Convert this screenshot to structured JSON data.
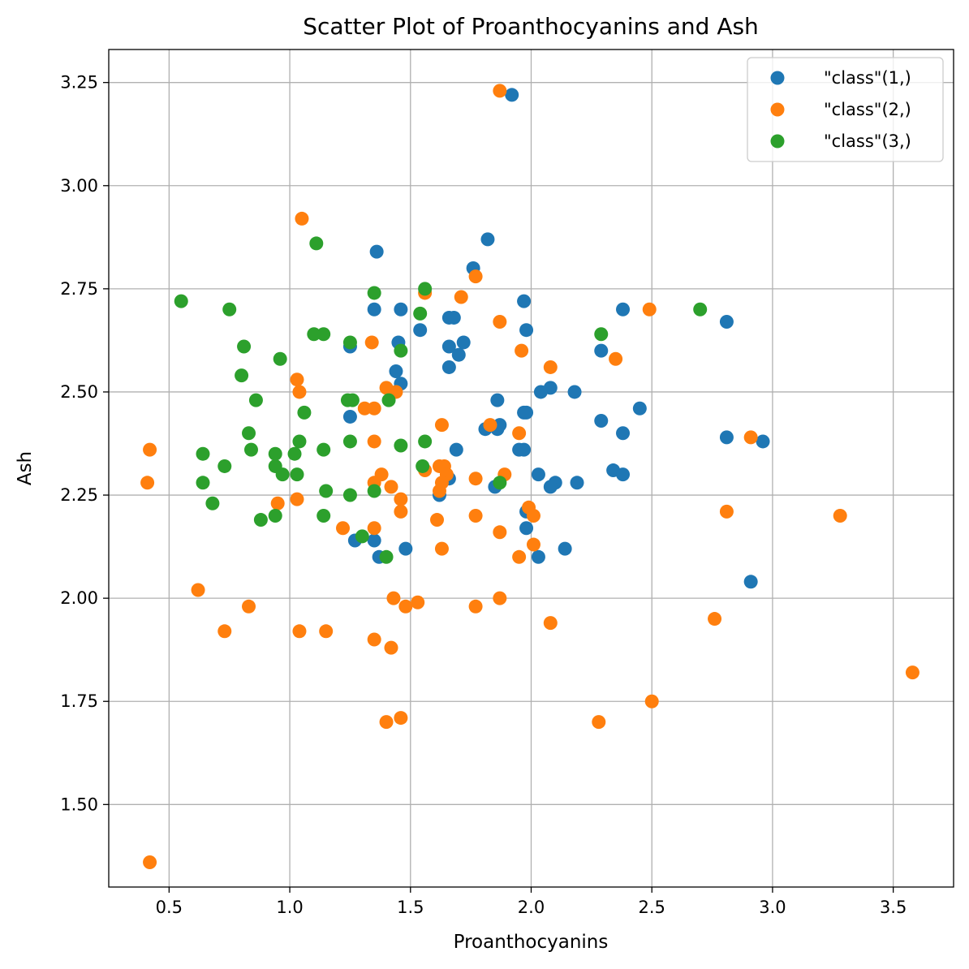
{
  "chart_data": {
    "type": "scatter",
    "title": "Scatter Plot of Proanthocyanins and Ash",
    "xlabel": "Proanthocyanins",
    "ylabel": "Ash",
    "xlim": [
      0.25,
      3.75
    ],
    "ylim": [
      1.3,
      3.33
    ],
    "xticks": [
      0.5,
      1.0,
      1.5,
      2.0,
      2.5,
      3.0,
      3.5
    ],
    "xtick_labels": [
      "0.5",
      "1.0",
      "1.5",
      "2.0",
      "2.5",
      "3.0",
      "3.5"
    ],
    "yticks": [
      1.5,
      1.75,
      2.0,
      2.25,
      2.5,
      2.75,
      3.0,
      3.25
    ],
    "ytick_labels": [
      "1.50",
      "1.75",
      "2.00",
      "2.25",
      "2.50",
      "2.75",
      "3.00",
      "3.25"
    ],
    "grid": true,
    "legend_position": "top-right",
    "series": [
      {
        "name": "\"class\"(1,)",
        "color": "#1f77b4",
        "points": [
          [
            1.92,
            3.22
          ],
          [
            1.82,
            2.87
          ],
          [
            1.36,
            2.84
          ],
          [
            1.76,
            2.8
          ],
          [
            1.97,
            2.72
          ],
          [
            1.35,
            2.7
          ],
          [
            1.46,
            2.7
          ],
          [
            2.38,
            2.7
          ],
          [
            1.66,
            2.68
          ],
          [
            1.68,
            2.68
          ],
          [
            2.81,
            2.67
          ],
          [
            1.54,
            2.65
          ],
          [
            1.98,
            2.65
          ],
          [
            1.45,
            2.62
          ],
          [
            1.72,
            2.62
          ],
          [
            1.25,
            2.61
          ],
          [
            1.66,
            2.61
          ],
          [
            2.29,
            2.6
          ],
          [
            1.7,
            2.59
          ],
          [
            1.66,
            2.56
          ],
          [
            1.44,
            2.55
          ],
          [
            1.46,
            2.52
          ],
          [
            2.08,
            2.51
          ],
          [
            2.04,
            2.5
          ],
          [
            2.18,
            2.5
          ],
          [
            1.86,
            2.48
          ],
          [
            2.45,
            2.46
          ],
          [
            1.98,
            2.45
          ],
          [
            1.97,
            2.45
          ],
          [
            1.25,
            2.44
          ],
          [
            2.29,
            2.43
          ],
          [
            1.87,
            2.42
          ],
          [
            1.81,
            2.41
          ],
          [
            1.86,
            2.41
          ],
          [
            2.38,
            2.4
          ],
          [
            2.81,
            2.39
          ],
          [
            2.96,
            2.38
          ],
          [
            1.69,
            2.36
          ],
          [
            1.95,
            2.36
          ],
          [
            1.97,
            2.36
          ],
          [
            2.34,
            2.31
          ],
          [
            2.03,
            2.3
          ],
          [
            2.38,
            2.3
          ],
          [
            1.66,
            2.29
          ],
          [
            2.1,
            2.28
          ],
          [
            2.19,
            2.28
          ],
          [
            1.85,
            2.27
          ],
          [
            2.08,
            2.27
          ],
          [
            1.62,
            2.25
          ],
          [
            1.98,
            2.21
          ],
          [
            1.98,
            2.17
          ],
          [
            1.27,
            2.14
          ],
          [
            1.35,
            2.14
          ],
          [
            1.48,
            2.12
          ],
          [
            2.14,
            2.12
          ],
          [
            1.37,
            2.1
          ],
          [
            2.03,
            2.1
          ],
          [
            2.91,
            2.04
          ]
        ]
      },
      {
        "name": "\"class\"(2,)",
        "color": "#ff7f0e",
        "points": [
          [
            1.87,
            3.23
          ],
          [
            1.05,
            2.92
          ],
          [
            1.77,
            2.78
          ],
          [
            1.56,
            2.74
          ],
          [
            1.71,
            2.73
          ],
          [
            2.49,
            2.7
          ],
          [
            1.87,
            2.67
          ],
          [
            1.34,
            2.62
          ],
          [
            1.96,
            2.6
          ],
          [
            2.35,
            2.58
          ],
          [
            2.08,
            2.56
          ],
          [
            1.03,
            2.53
          ],
          [
            1.4,
            2.51
          ],
          [
            1.04,
            2.5
          ],
          [
            1.44,
            2.5
          ],
          [
            1.31,
            2.46
          ],
          [
            1.35,
            2.46
          ],
          [
            1.63,
            2.42
          ],
          [
            1.83,
            2.42
          ],
          [
            1.95,
            2.4
          ],
          [
            2.91,
            2.39
          ],
          [
            1.35,
            2.38
          ],
          [
            0.42,
            2.36
          ],
          [
            1.62,
            2.32
          ],
          [
            1.64,
            2.32
          ],
          [
            1.56,
            2.31
          ],
          [
            1.65,
            2.3
          ],
          [
            1.38,
            2.3
          ],
          [
            1.89,
            2.3
          ],
          [
            1.77,
            2.29
          ],
          [
            1.35,
            2.28
          ],
          [
            1.63,
            2.28
          ],
          [
            0.41,
            2.28
          ],
          [
            1.42,
            2.27
          ],
          [
            1.62,
            2.26
          ],
          [
            1.03,
            2.24
          ],
          [
            1.46,
            2.24
          ],
          [
            0.95,
            2.23
          ],
          [
            1.99,
            2.22
          ],
          [
            1.46,
            2.21
          ],
          [
            2.81,
            2.21
          ],
          [
            1.77,
            2.2
          ],
          [
            2.01,
            2.2
          ],
          [
            3.28,
            2.2
          ],
          [
            1.61,
            2.19
          ],
          [
            1.22,
            2.17
          ],
          [
            1.35,
            2.17
          ],
          [
            1.87,
            2.16
          ],
          [
            2.01,
            2.13
          ],
          [
            1.63,
            2.12
          ],
          [
            1.95,
            2.1
          ],
          [
            0.62,
            2.02
          ],
          [
            1.43,
            2.0
          ],
          [
            1.87,
            2.0
          ],
          [
            1.53,
            1.99
          ],
          [
            0.83,
            1.98
          ],
          [
            1.48,
            1.98
          ],
          [
            1.77,
            1.98
          ],
          [
            2.76,
            1.95
          ],
          [
            2.08,
            1.94
          ],
          [
            0.73,
            1.92
          ],
          [
            1.04,
            1.92
          ],
          [
            1.15,
            1.92
          ],
          [
            1.35,
            1.9
          ],
          [
            1.42,
            1.88
          ],
          [
            3.58,
            1.82
          ],
          [
            2.5,
            1.75
          ],
          [
            1.46,
            1.71
          ],
          [
            1.4,
            1.7
          ],
          [
            2.28,
            1.7
          ],
          [
            0.42,
            1.36
          ]
        ]
      },
      {
        "name": "\"class\"(3,)",
        "color": "#2ca02c",
        "points": [
          [
            1.11,
            2.86
          ],
          [
            1.56,
            2.75
          ],
          [
            1.35,
            2.74
          ],
          [
            0.55,
            2.72
          ],
          [
            0.75,
            2.7
          ],
          [
            2.7,
            2.7
          ],
          [
            1.54,
            2.69
          ],
          [
            1.1,
            2.64
          ],
          [
            1.14,
            2.64
          ],
          [
            2.29,
            2.64
          ],
          [
            1.25,
            2.62
          ],
          [
            0.81,
            2.61
          ],
          [
            1.46,
            2.6
          ],
          [
            0.96,
            2.58
          ],
          [
            0.8,
            2.54
          ],
          [
            0.86,
            2.48
          ],
          [
            1.24,
            2.48
          ],
          [
            1.26,
            2.48
          ],
          [
            1.41,
            2.48
          ],
          [
            1.06,
            2.45
          ],
          [
            0.83,
            2.4
          ],
          [
            1.04,
            2.38
          ],
          [
            1.25,
            2.38
          ],
          [
            1.56,
            2.38
          ],
          [
            1.46,
            2.37
          ],
          [
            0.84,
            2.36
          ],
          [
            1.14,
            2.36
          ],
          [
            0.64,
            2.35
          ],
          [
            0.94,
            2.35
          ],
          [
            1.02,
            2.35
          ],
          [
            0.73,
            2.32
          ],
          [
            0.94,
            2.32
          ],
          [
            1.55,
            2.32
          ],
          [
            0.97,
            2.3
          ],
          [
            1.03,
            2.3
          ],
          [
            0.64,
            2.28
          ],
          [
            1.87,
            2.28
          ],
          [
            1.15,
            2.26
          ],
          [
            1.35,
            2.26
          ],
          [
            1.25,
            2.25
          ],
          [
            0.68,
            2.23
          ],
          [
            0.94,
            2.2
          ],
          [
            1.14,
            2.2
          ],
          [
            0.88,
            2.19
          ],
          [
            1.3,
            2.15
          ],
          [
            1.4,
            2.1
          ]
        ]
      }
    ]
  }
}
